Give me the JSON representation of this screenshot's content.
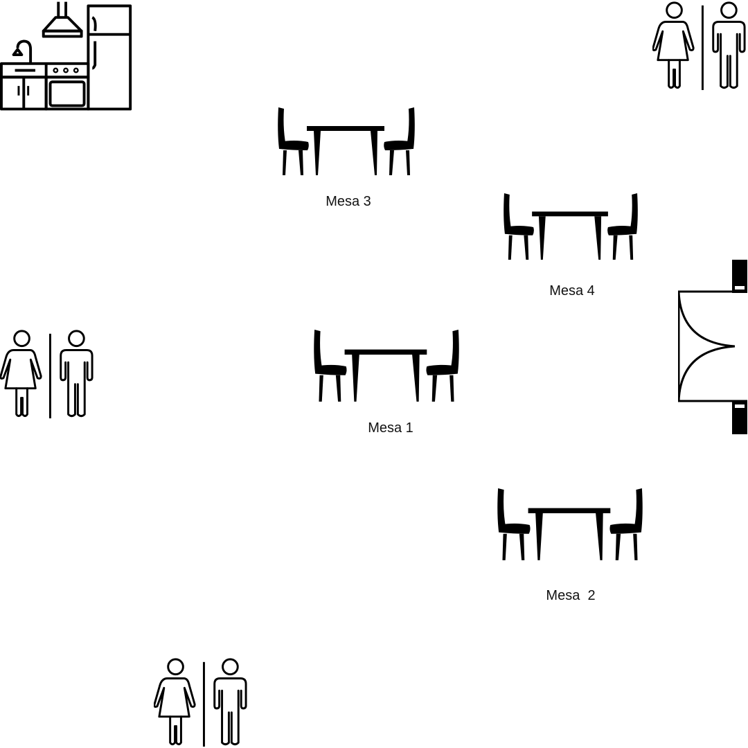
{
  "tables": [
    {
      "id": "mesa-1",
      "label": "Mesa 1"
    },
    {
      "id": "mesa-2",
      "label": "Mesa  2"
    },
    {
      "id": "mesa-3",
      "label": "Mesa 3"
    },
    {
      "id": "mesa-4",
      "label": "Mesa 4"
    }
  ],
  "icons": {
    "kitchen": "kitchen-icon",
    "restroom": "restroom-icon",
    "table_set": "dining-table-icon",
    "door": "double-door-icon"
  },
  "colors": {
    "stroke": "#000000",
    "background": "#ffffff"
  }
}
